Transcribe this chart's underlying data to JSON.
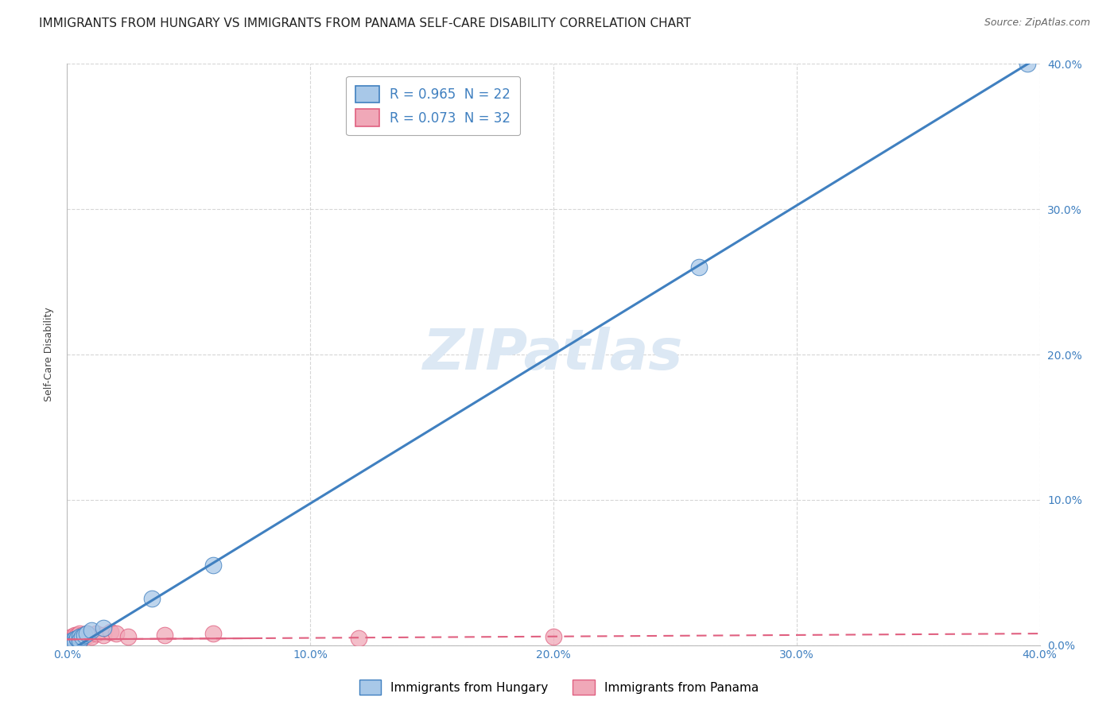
{
  "title": "IMMIGRANTS FROM HUNGARY VS IMMIGRANTS FROM PANAMA SELF-CARE DISABILITY CORRELATION CHART",
  "source": "Source: ZipAtlas.com",
  "ylabel": "Self-Care Disability",
  "ytick_vals": [
    0.0,
    0.1,
    0.2,
    0.3,
    0.4
  ],
  "xlim": [
    0.0,
    0.4
  ],
  "ylim": [
    0.0,
    0.4
  ],
  "legend_entries": [
    {
      "label": "R = 0.965  N = 22",
      "color": "#a8c8e8"
    },
    {
      "label": "R = 0.073  N = 32",
      "color": "#f0a8b8"
    }
  ],
  "watermark": "ZIPatlas",
  "hungary_scatter_x": [
    0.001,
    0.001,
    0.002,
    0.002,
    0.002,
    0.003,
    0.003,
    0.003,
    0.004,
    0.004,
    0.005,
    0.005,
    0.005,
    0.006,
    0.007,
    0.008,
    0.01,
    0.015,
    0.035,
    0.06,
    0.26,
    0.395
  ],
  "hungary_scatter_y": [
    0.001,
    0.002,
    0.001,
    0.003,
    0.002,
    0.003,
    0.004,
    0.002,
    0.004,
    0.005,
    0.004,
    0.006,
    0.003,
    0.006,
    0.007,
    0.008,
    0.01,
    0.012,
    0.032,
    0.055,
    0.26,
    0.4
  ],
  "panama_scatter_x": [
    0.001,
    0.001,
    0.001,
    0.002,
    0.002,
    0.002,
    0.002,
    0.003,
    0.003,
    0.003,
    0.003,
    0.004,
    0.004,
    0.004,
    0.005,
    0.005,
    0.005,
    0.006,
    0.006,
    0.007,
    0.008,
    0.009,
    0.01,
    0.012,
    0.015,
    0.018,
    0.02,
    0.025,
    0.04,
    0.06,
    0.12,
    0.2
  ],
  "panama_scatter_y": [
    0.003,
    0.004,
    0.005,
    0.002,
    0.004,
    0.005,
    0.006,
    0.003,
    0.005,
    0.006,
    0.007,
    0.003,
    0.005,
    0.007,
    0.004,
    0.006,
    0.008,
    0.005,
    0.007,
    0.006,
    0.008,
    0.007,
    0.006,
    0.008,
    0.007,
    0.009,
    0.008,
    0.006,
    0.007,
    0.008,
    0.005,
    0.006
  ],
  "hungary_line_color": "#4080c0",
  "panama_line_color": "#e06080",
  "hungary_dot_color": "#a8c8e8",
  "panama_dot_color": "#f0a8b8",
  "grid_color": "#cccccc",
  "background_color": "#ffffff",
  "title_fontsize": 11,
  "axis_label_fontsize": 9,
  "tick_fontsize": 10,
  "watermark_color": "#dce8f4",
  "watermark_fontsize": 52,
  "hungary_line_x0": 0.0,
  "hungary_line_y0": -0.005,
  "hungary_line_x1": 0.4,
  "hungary_line_y1": 0.405,
  "panama_line_x0": 0.0,
  "panama_line_y0": 0.004,
  "panama_line_x1": 0.4,
  "panama_line_y1": 0.008
}
